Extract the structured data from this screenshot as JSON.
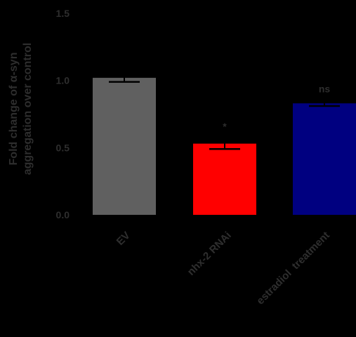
{
  "chart_data": {
    "type": "bar",
    "title": "",
    "xlabel": "",
    "ylabel_lines": [
      "Fold change of α-syn",
      "aggregation over control"
    ],
    "ylim": [
      0.0,
      1.5
    ],
    "yticks": [
      "0.0",
      "0.5",
      "1.0",
      "1.5"
    ],
    "ytick_values": [
      0.0,
      0.5,
      1.0,
      1.5
    ],
    "grid": false,
    "legend": "none",
    "categories": [
      "EV",
      "nhx-2 RNAi",
      "estradiol  treatment"
    ],
    "values": [
      1.02,
      0.53,
      0.83
    ],
    "errors": [
      0.03,
      0.04,
      0.02
    ],
    "significance": [
      "",
      "*",
      "ns"
    ],
    "colors": [
      "#606060",
      "#ff0000",
      "#000080"
    ]
  }
}
